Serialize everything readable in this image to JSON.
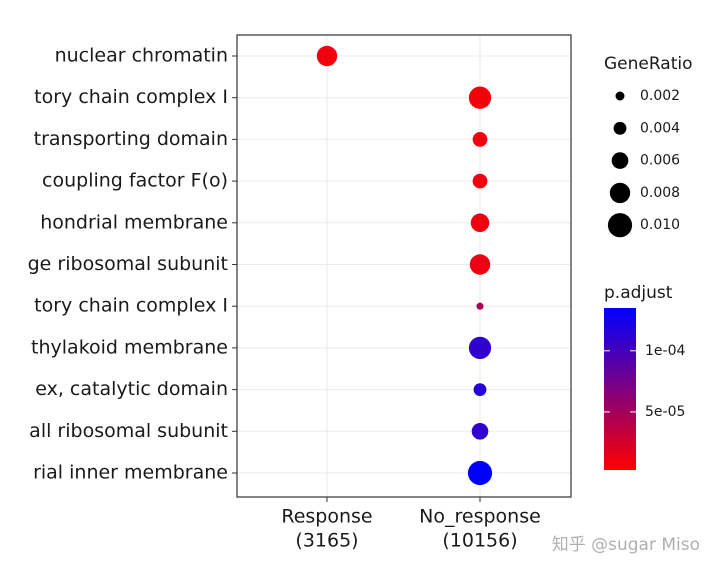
{
  "chart_data": {
    "type": "dot",
    "categories": [
      "nuclear chromatin",
      "tory chain complex I",
      "transporting domain",
      "coupling factor F(o)",
      "hondrial membrane",
      "ge ribosomal subunit",
      "tory chain complex I",
      "thylakoid membrane",
      "ex, catalytic domain",
      "all ribosomal subunit",
      "rial inner membrane"
    ],
    "series": [
      {
        "name": "Response",
        "count_label": "(3165)",
        "values": [
          0.008,
          null,
          null,
          null,
          null,
          null,
          null,
          null,
          null,
          null,
          null
        ],
        "p_adjust": [
          1e-05,
          null,
          null,
          null,
          null,
          null,
          null,
          null,
          null,
          null,
          null
        ]
      },
      {
        "name": "No_response",
        "count_label": "(10156)",
        "values": [
          null,
          0.009,
          0.005,
          0.005,
          0.007,
          0.008,
          0.001,
          0.009,
          0.004,
          0.006,
          0.01
        ],
        "p_adjust": [
          null,
          8e-06,
          1e-05,
          1e-05,
          1e-05,
          1.2e-05,
          4.5e-05,
          0.00011,
          0.000115,
          0.00011,
          0.000135
        ]
      }
    ],
    "size_legend": {
      "title": "GeneRatio",
      "ticks": [
        0.002,
        0.004,
        0.006,
        0.008,
        {
          "value": 0.01,
          "label": "0.010"
        }
      ]
    },
    "color_legend": {
      "title": "p.adjust",
      "lim": [
        2.5e-06,
        0.000135
      ],
      "low": "#ff0000",
      "high": "#0000ff",
      "ticks": [
        {
          "value": 0.0001,
          "label": "1e-04"
        },
        {
          "value": 5e-05,
          "label": "5e-05"
        }
      ]
    },
    "grid": true,
    "watermark": "知乎 @sugar Miso"
  }
}
